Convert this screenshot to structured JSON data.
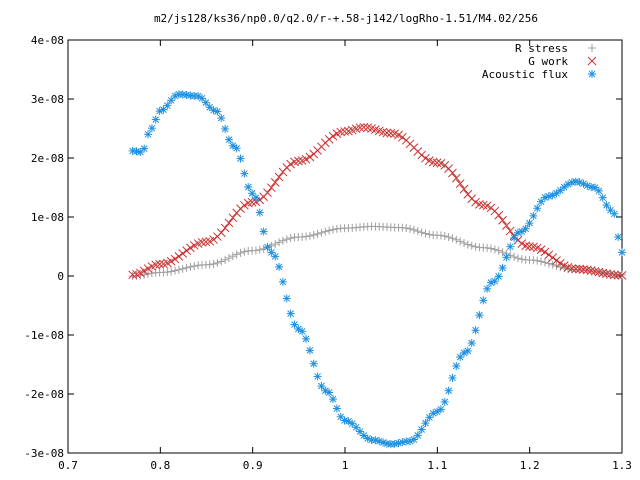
{
  "chart_data": {
    "type": "scatter",
    "title": "m2/js128/ks36/np0.0/q2.0/r-+.58-j142/logRho-1.51/M4.02/256",
    "xlabel": "",
    "ylabel": "",
    "xlim": [
      0.7,
      1.3
    ],
    "ylim": [
      -3e-08,
      4e-08
    ],
    "x_ticks": [
      {
        "value": 0.7,
        "label": "0.7"
      },
      {
        "value": 0.8,
        "label": "0.8"
      },
      {
        "value": 0.9,
        "label": "0.9"
      },
      {
        "value": 1.0,
        "label": "1"
      },
      {
        "value": 1.1,
        "label": "1.1"
      },
      {
        "value": 1.2,
        "label": "1.2"
      },
      {
        "value": 1.3,
        "label": "1.3"
      }
    ],
    "y_ticks": [
      {
        "value": 4e-08,
        "label": "4e-08"
      },
      {
        "value": 3e-08,
        "label": "3e-08"
      },
      {
        "value": 2e-08,
        "label": "2e-08"
      },
      {
        "value": 1e-08,
        "label": "1e-08"
      },
      {
        "value": 0,
        "label": "0"
      },
      {
        "value": -1e-08,
        "label": "-1e-08"
      },
      {
        "value": -2e-08,
        "label": "-2e-08"
      },
      {
        "value": -3e-08,
        "label": "-3e-08"
      }
    ],
    "grid": false,
    "legend_position": "top-right",
    "series": [
      {
        "name": "R stress",
        "marker": "plus",
        "color": "#a0a0a0",
        "x_range": [
          0.77,
          1.3
        ],
        "points": [
          [
            0.77,
            0.0
          ],
          [
            0.8,
            6e-10
          ],
          [
            0.85,
            1.9e-09
          ],
          [
            0.9,
            4.3e-09
          ],
          [
            0.95,
            6.6e-09
          ],
          [
            1.0,
            8.1e-09
          ],
          [
            1.03,
            8.4e-09
          ],
          [
            1.06,
            8.2e-09
          ],
          [
            1.1,
            6.9e-09
          ],
          [
            1.15,
            4.8e-09
          ],
          [
            1.2,
            2.7e-09
          ],
          [
            1.25,
            1.1e-09
          ],
          [
            1.3,
            2e-10
          ]
        ]
      },
      {
        "name": "G work",
        "marker": "cross",
        "color": "#cc3333",
        "x_range": [
          0.77,
          1.3
        ],
        "points": [
          [
            0.77,
            2e-10
          ],
          [
            0.8,
            2e-09
          ],
          [
            0.85,
            5.8e-09
          ],
          [
            0.9,
            1.25e-08
          ],
          [
            0.95,
            1.95e-08
          ],
          [
            1.0,
            2.45e-08
          ],
          [
            1.02,
            2.52e-08
          ],
          [
            1.05,
            2.42e-08
          ],
          [
            1.1,
            1.92e-08
          ],
          [
            1.15,
            1.2e-08
          ],
          [
            1.2,
            5e-09
          ],
          [
            1.25,
            1.2e-09
          ],
          [
            1.3,
            1e-10
          ]
        ]
      },
      {
        "name": "Acoustic flux",
        "marker": "star",
        "color": "#1e90e0",
        "x_range": [
          0.77,
          1.3
        ],
        "points": [
          [
            0.77,
            2.12e-08
          ],
          [
            0.78,
            2.1e-08
          ],
          [
            0.79,
            2.5e-08
          ],
          [
            0.8,
            2.8e-08
          ],
          [
            0.82,
            3.08e-08
          ],
          [
            0.84,
            3.05e-08
          ],
          [
            0.86,
            2.8e-08
          ],
          [
            0.88,
            2.2e-08
          ],
          [
            0.9,
            1.4e-08
          ],
          [
            0.92,
            4e-09
          ],
          [
            0.95,
            -9e-09
          ],
          [
            0.98,
            -1.95e-08
          ],
          [
            1.0,
            -2.45e-08
          ],
          [
            1.03,
            -2.78e-08
          ],
          [
            1.05,
            -2.85e-08
          ],
          [
            1.07,
            -2.8e-08
          ],
          [
            1.1,
            -2.3e-08
          ],
          [
            1.13,
            -1.3e-08
          ],
          [
            1.16,
            -1e-09
          ],
          [
            1.19,
            7.5e-09
          ],
          [
            1.22,
            1.35e-08
          ],
          [
            1.25,
            1.6e-08
          ],
          [
            1.27,
            1.5e-08
          ],
          [
            1.29,
            1.1e-08
          ],
          [
            1.3,
            4e-09
          ]
        ]
      }
    ]
  }
}
